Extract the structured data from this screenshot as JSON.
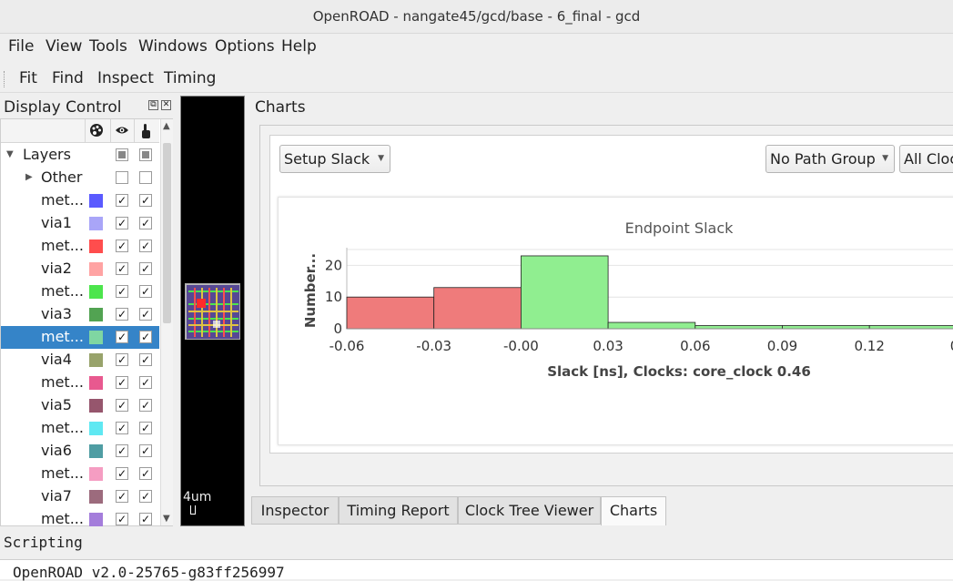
{
  "window": {
    "title": "OpenROAD - nangate45/gcd/base - 6_final - gcd"
  },
  "menu": [
    "File",
    "View",
    "Tools",
    "Windows",
    "Options",
    "Help"
  ],
  "toolbar": [
    "Fit",
    "Find",
    "Inspect",
    "Timing"
  ],
  "display_control": {
    "title": "Display Control",
    "header_icons": [
      "palette-icon",
      "eye-icon",
      "pointer-icon"
    ],
    "layers_label": "Layers",
    "other_label": "Other",
    "rows": [
      {
        "label": "met...",
        "color": "#5a5aff"
      },
      {
        "label": "via1",
        "color": "#a9a5f8"
      },
      {
        "label": "met...",
        "color": "#ff4d4d"
      },
      {
        "label": "via2",
        "color": "#ffa3a3"
      },
      {
        "label": "met...",
        "color": "#4ce54c"
      },
      {
        "label": "via3",
        "color": "#52a352"
      },
      {
        "label": "met...",
        "color": "#7fd6a2",
        "selected": true
      },
      {
        "label": "via4",
        "color": "#98a36b"
      },
      {
        "label": "met...",
        "color": "#e8598f"
      },
      {
        "label": "via5",
        "color": "#96566d"
      },
      {
        "label": "met...",
        "color": "#5fe8f2"
      },
      {
        "label": "via6",
        "color": "#4f9da3"
      },
      {
        "label": "met...",
        "color": "#f59dc2"
      },
      {
        "label": "via7",
        "color": "#9c6b7d"
      },
      {
        "label": "met...",
        "color": "#a47ddb"
      }
    ]
  },
  "layout_view": {
    "scale_label": "4um"
  },
  "charts": {
    "title": "Charts",
    "chart_select": "Setup Slack",
    "path_group_select": "No Path Group",
    "clock_select": "All Cloc"
  },
  "chart_data": {
    "type": "bar",
    "title": "Endpoint Slack",
    "ylabel": "Number...",
    "xlabel": "Slack [ns], Clocks: core_clock 0.46",
    "x_tick_labels": [
      "-0.06",
      "-0.03",
      "-0.00",
      "0.03",
      "0.06",
      "0.09",
      "0.12",
      "0."
    ],
    "y_ticks": [
      0,
      10,
      20
    ],
    "ylim": [
      0,
      25
    ],
    "bins": [
      {
        "from": -0.06,
        "to": -0.03,
        "value": 10,
        "color": "#ef7b7b"
      },
      {
        "from": -0.03,
        "to": 0.0,
        "value": 13,
        "color": "#ef7b7b"
      },
      {
        "from": 0.0,
        "to": 0.03,
        "value": 23,
        "color": "#90ee90"
      },
      {
        "from": 0.03,
        "to": 0.06,
        "value": 2,
        "color": "#90ee90"
      },
      {
        "from": 0.06,
        "to": 0.09,
        "value": 1,
        "color": "#90ee90"
      },
      {
        "from": 0.09,
        "to": 0.12,
        "value": 1,
        "color": "#90ee90"
      },
      {
        "from": 0.12,
        "to": 0.15,
        "value": 1,
        "color": "#90ee90"
      }
    ]
  },
  "tabs": [
    "Inspector",
    "Timing Report",
    "Clock Tree Viewer",
    "Charts"
  ],
  "active_tab": "Charts",
  "scripting": {
    "title": "Scripting",
    "console_line": "OpenROAD v2.0-25765-g83ff256997"
  }
}
